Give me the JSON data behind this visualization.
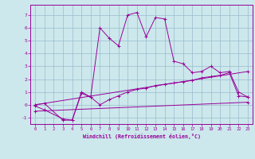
{
  "xlabel": "Windchill (Refroidissement éolien,°C)",
  "bg_color": "#cce8ec",
  "line_color": "#990099",
  "grid_color": "#99bbcc",
  "xlim": [
    -0.5,
    23.5
  ],
  "ylim": [
    -1.5,
    7.8
  ],
  "yticks": [
    -1,
    0,
    1,
    2,
    3,
    4,
    5,
    6,
    7
  ],
  "xticks": [
    0,
    1,
    2,
    3,
    4,
    5,
    6,
    7,
    8,
    9,
    10,
    11,
    12,
    13,
    14,
    15,
    16,
    17,
    18,
    19,
    20,
    21,
    22,
    23
  ],
  "line1_x": [
    0,
    1,
    3,
    4,
    5,
    6,
    7,
    8,
    9,
    10,
    11,
    12,
    13,
    14,
    15,
    16,
    17,
    18,
    19,
    20,
    21,
    22,
    23
  ],
  "line1_y": [
    -0.1,
    -0.4,
    -1.1,
    -1.2,
    1.0,
    0.6,
    6.0,
    5.2,
    4.6,
    7.0,
    7.2,
    5.3,
    6.8,
    6.7,
    3.4,
    3.2,
    2.5,
    2.6,
    3.0,
    2.5,
    2.6,
    1.0,
    0.6
  ],
  "line2_x": [
    0,
    1,
    3,
    4,
    5,
    6,
    7,
    8,
    9,
    10,
    11,
    12,
    13,
    14,
    15,
    16,
    17,
    18,
    19,
    20,
    21,
    22,
    23
  ],
  "line2_y": [
    0.0,
    0.1,
    -1.2,
    -1.2,
    0.9,
    0.6,
    0.0,
    0.4,
    0.7,
    1.0,
    1.2,
    1.3,
    1.5,
    1.6,
    1.7,
    1.8,
    1.9,
    2.1,
    2.2,
    2.3,
    2.5,
    0.7,
    0.6
  ],
  "line3_x": [
    0,
    23
  ],
  "line3_y": [
    -0.5,
    0.2
  ],
  "line4_x": [
    0,
    23
  ],
  "line4_y": [
    0.0,
    2.6
  ]
}
